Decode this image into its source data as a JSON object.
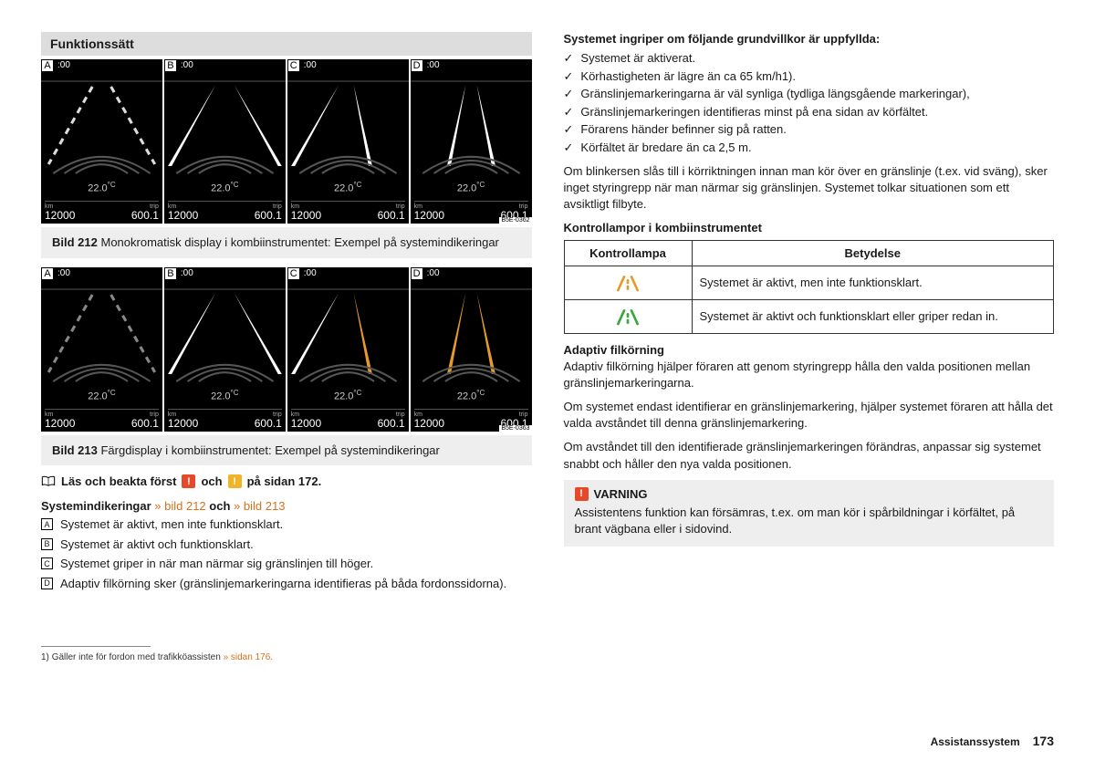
{
  "left": {
    "section_header": "Funktionssätt",
    "fig1": {
      "panels": [
        {
          "letter": "A",
          "clock": ":00",
          "left_lane": "dashed",
          "right_lane": "dashed",
          "left_color": "#dddddd",
          "right_color": "#dddddd"
        },
        {
          "letter": "B",
          "clock": ":00",
          "left_lane": "solid",
          "right_lane": "solid",
          "left_color": "#ffffff",
          "right_color": "#ffffff"
        },
        {
          "letter": "C",
          "clock": ":00",
          "left_lane": "solid",
          "right_lane": "center",
          "left_color": "#ffffff",
          "right_color": "#ffffff"
        },
        {
          "letter": "D",
          "clock": ":00",
          "left_lane": "center",
          "right_lane": "center",
          "left_color": "#ffffff",
          "right_color": "#ffffff"
        }
      ],
      "temp": "22.0",
      "temp_unit": "°C",
      "km_label": "km",
      "km_val": "12000",
      "trip_label": "trip",
      "trip_val": "600.1",
      "code": "B5E-0362",
      "caption_num": "Bild 212",
      "caption_text": "Monokromatisk display i kombiinstrumentet: Exempel på systemindikeringar"
    },
    "fig2": {
      "panels": [
        {
          "letter": "A",
          "clock": ":00",
          "left_lane": "dashed",
          "right_lane": "dashed",
          "left_color": "#888888",
          "right_color": "#888888"
        },
        {
          "letter": "B",
          "clock": ":00",
          "left_lane": "solid",
          "right_lane": "solid",
          "left_color": "#ffffff",
          "right_color": "#ffffff"
        },
        {
          "letter": "C",
          "clock": ":00",
          "left_lane": "solid",
          "right_lane": "center",
          "left_color": "#ffffff",
          "right_color": "#e59a2b"
        },
        {
          "letter": "D",
          "clock": ":00",
          "left_lane": "center",
          "right_lane": "center",
          "left_color": "#e59a2b",
          "right_color": "#e59a2b"
        }
      ],
      "temp": "22.0",
      "temp_unit": "°C",
      "km_label": "km",
      "km_val": "12000",
      "trip_label": "trip",
      "trip_val": "600.1",
      "code": "B5E-0363",
      "caption_num": "Bild 213",
      "caption_text": "Färgdisplay i kombiinstrumentet: Exempel på systemindikeringar"
    },
    "read_first_a": "Läs och beakta först",
    "read_first_b": "och",
    "read_first_c": "på sidan 172.",
    "sysind_head": "Systemindikeringar",
    "sysind_ref1": "» bild 212",
    "sysind_mid": "och",
    "sysind_ref2": "» bild 213",
    "items": {
      "A": "Systemet är aktivt, men inte funktionsklart.",
      "B": "Systemet är aktivt och funktionsklart.",
      "C": "Systemet griper in när man närmar sig gränslinjen till höger.",
      "D": "Adaptiv filkörning sker (gränslinjemarkeringarna identifieras på båda fordonssidorna)."
    },
    "footnote_marker": "1)",
    "footnote_text": "Gäller inte för fordon med trafikköassisten",
    "footnote_ref": "» sidan 176."
  },
  "right": {
    "intro_bold": "Systemet ingriper om följande grundvillkor är uppfyllda:",
    "checks": [
      "Systemet är aktiverat.",
      "Körhastigheten är lägre än ca 65 km/h1).",
      "Gränslinjemarkeringarna är väl synliga (tydliga längsgående markeringar),",
      "Gränslinjemarkeringen identifieras minst på ena sidan av körfältet.",
      "Förarens händer befinner sig på ratten.",
      "Körfältet är bredare än ca 2,5 m."
    ],
    "para1": "Om blinkersen slås till i körriktningen innan man kör över en gränslinje (t.ex. vid sväng), sker inget styringrepp när man närmar sig gränslinjen. Systemet tolkar situationen som ett avsiktligt filbyte.",
    "ktl_head": "Kontrollampor i kombiinstrumentet",
    "ktl_col1": "Kontrollampa",
    "ktl_col2": "Betydelse",
    "ktl_row1": "Systemet är aktivt, men inte funktionsklart.",
    "ktl_row1_color": "#e59a2b",
    "ktl_row2": "Systemet är aktivt och funktionsklart eller griper redan in.",
    "ktl_row2_color": "#3aa53a",
    "adaptive_head": "Adaptiv filkörning",
    "adaptive_p1": "Adaptiv filkörning hjälper föraren att genom styringrepp hålla den valda positionen mellan gränslinjemarkeringarna.",
    "adaptive_p2": "Om systemet endast identifierar en gränslinjemarkering, hjälper systemet föraren att hålla det valda avståndet till denna gränslinjemarkering.",
    "adaptive_p3": "Om avståndet till den identifierade gränslinjemarkeringen förändras, anpassar sig systemet snabbt och håller den nya valda positionen.",
    "warn_title": "VARNING",
    "warn_body": "Assistentens funktion kan försämras, t.ex. om man kör i spårbildningar i körfältet, på brant vägbana eller i sidovind."
  },
  "footer": {
    "section": "Assistanssystem",
    "page": "173"
  }
}
